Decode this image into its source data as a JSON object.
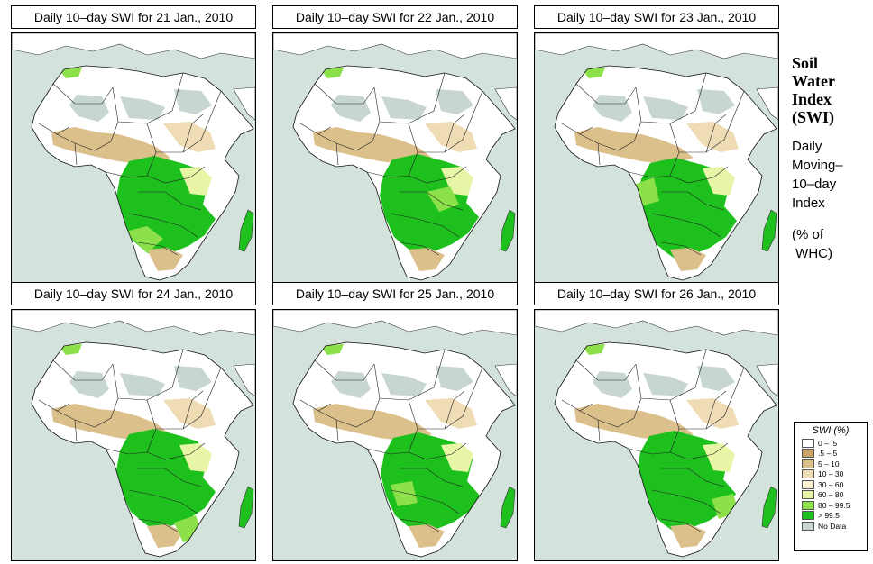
{
  "panels": [
    {
      "title": "Daily 10–day SWI for  21 Jan., 2010",
      "variant": 0
    },
    {
      "title": "Daily 10–day SWI for  22 Jan., 2010",
      "variant": 1
    },
    {
      "title": "Daily 10–day SWI for  23 Jan., 2010",
      "variant": 2
    },
    {
      "title": "Daily 10–day SWI for  24 Jan., 2010",
      "variant": 3
    },
    {
      "title": "Daily 10–day SWI for  25 Jan., 2010",
      "variant": 4
    },
    {
      "title": "Daily 10–day SWI for  26 Jan., 2010",
      "variant": 5
    }
  ],
  "side": {
    "title_lines": [
      "Soil",
      "Water",
      "Index",
      "(SWI)"
    ],
    "subtitle_lines": [
      "Daily",
      "Moving–",
      "10–day",
      "Index"
    ],
    "unit_lines": [
      "(% of",
      " WHC)"
    ]
  },
  "legend": {
    "title": "SWI (%)",
    "items": [
      {
        "label": "0 – .5",
        "color": "#ffffff"
      },
      {
        "label": ".5 – 5",
        "color": "#c9a46c"
      },
      {
        "label": "5 – 10",
        "color": "#dcc08c"
      },
      {
        "label": "10 – 30",
        "color": "#efdcb4"
      },
      {
        "label": "30 – 60",
        "color": "#f8f2d2"
      },
      {
        "label": "60 – 80",
        "color": "#e6f6a6"
      },
      {
        "label": "80 – 99.5",
        "color": "#8ce04a"
      },
      {
        "label": "> 99.5",
        "color": "#1ec01e"
      },
      {
        "label": "No Data",
        "color": "#c8d6d0"
      }
    ]
  },
  "colors": {
    "sea": "#d4e2dc",
    "land": "#ffffff",
    "desert_nodata": "#c8d6d0",
    "dry": "#dcc08c",
    "dry_light": "#efdcb4",
    "moist": "#e6f6a6",
    "wet": "#8ce04a",
    "saturated": "#1ec01e"
  }
}
